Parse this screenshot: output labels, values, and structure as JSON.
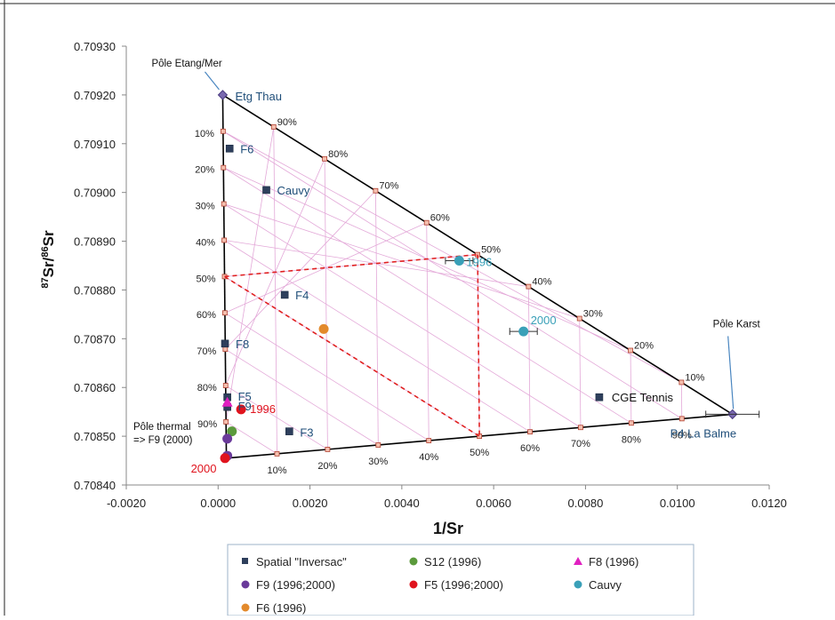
{
  "chart_data": {
    "type": "scatter",
    "title": "",
    "xlabel": "1/Sr",
    "ylabel_main": "Sr/",
    "ylabel_sup1": "87",
    "ylabel_sup2": "86",
    "ylabel_tail": "Sr",
    "xlim": [
      -0.002,
      0.012
    ],
    "ylim": [
      0.7084,
      0.7093
    ],
    "xticks": [
      "-0.0020",
      "0.0000",
      "0.0020",
      "0.0040",
      "0.0060",
      "0.0080",
      "0.0100",
      "0.0120"
    ],
    "yticks": [
      "0.70840",
      "0.70850",
      "0.70860",
      "0.70870",
      "0.70880",
      "0.70890",
      "0.70900",
      "0.70910",
      "0.70920",
      "0.70930"
    ],
    "end_members": {
      "thermal": {
        "x": 0.00018,
        "y": 0.708455,
        "label": "2000"
      },
      "sea": {
        "x": 0.0001,
        "y": 0.7092,
        "label": "Etg Thau"
      },
      "karst": {
        "x": 0.0112,
        "y": 0.708545,
        "label": "P4 La Balme"
      }
    },
    "pole_labels": {
      "sea": "Pôle Etang/Mer",
      "karst": "Pôle Karst",
      "thermal_1": "Pôle thermal",
      "thermal_2": "=> F9 (2000)"
    },
    "mix_pct_sea_side": [
      "10%",
      "20%",
      "30%",
      "40%",
      "50%",
      "60%",
      "70%",
      "80%",
      "90%"
    ],
    "mix_pct_top_side": [
      "90%",
      "80%",
      "70%",
      "60%",
      "50%",
      "40%",
      "30%",
      "20%",
      "10%"
    ],
    "mix_pct_bottom_side": [
      "10%",
      "20%",
      "30%",
      "40%",
      "50%",
      "60%",
      "70%",
      "80%",
      "90%"
    ],
    "series": [
      {
        "name": "Spatial \"Inversac\"",
        "marker": "square",
        "color": "#2e3f5c",
        "points": [
          {
            "x": 0.00025,
            "y": 0.70909,
            "label": "F6"
          },
          {
            "x": 0.00105,
            "y": 0.709005,
            "label": "Cauvy"
          },
          {
            "x": 0.00145,
            "y": 0.70879,
            "label": "F4"
          },
          {
            "x": 0.00015,
            "y": 0.70869,
            "label": "F8"
          },
          {
            "x": 0.0002,
            "y": 0.70858,
            "label": "F5"
          },
          {
            "x": 0.0002,
            "y": 0.70856,
            "label": "F9"
          },
          {
            "x": 0.00155,
            "y": 0.70851,
            "label": "F3"
          },
          {
            "x": 0.0083,
            "y": 0.70858,
            "label": "CGE Tennis"
          }
        ]
      },
      {
        "name": "S12 (1996)",
        "marker": "circle",
        "color": "#5b9a3c",
        "points": [
          {
            "x": 0.0003,
            "y": 0.70851
          }
        ]
      },
      {
        "name": "F8 (1996)",
        "marker": "triangle",
        "color": "#e020c0",
        "points": [
          {
            "x": 0.0002,
            "y": 0.70857
          }
        ]
      },
      {
        "name": "F9 (1996;2000)",
        "marker": "circle",
        "color": "#6a3a9a",
        "points": [
          {
            "x": 0.0002,
            "y": 0.708495
          },
          {
            "x": 0.0002,
            "y": 0.70846
          }
        ]
      },
      {
        "name": "F5 (1996;2000)",
        "marker": "circle",
        "color": "#e0141e",
        "points": [
          {
            "x": 0.0005,
            "y": 0.708555,
            "label": "1996"
          },
          {
            "x": 0.00015,
            "y": 0.708455
          }
        ]
      },
      {
        "name": "Cauvy",
        "marker": "circle",
        "color": "#3aa0b8",
        "points": [
          {
            "x": 0.00525,
            "y": 0.70886,
            "label": "1996",
            "xerr": 0.0003
          },
          {
            "x": 0.00665,
            "y": 0.708715,
            "label": "2000",
            "xerr": 0.0003
          }
        ]
      },
      {
        "name": "F6 (1996)",
        "marker": "circle",
        "color": "#e38a2c",
        "points": [
          {
            "x": 0.0023,
            "y": 0.70872
          }
        ]
      }
    ]
  }
}
